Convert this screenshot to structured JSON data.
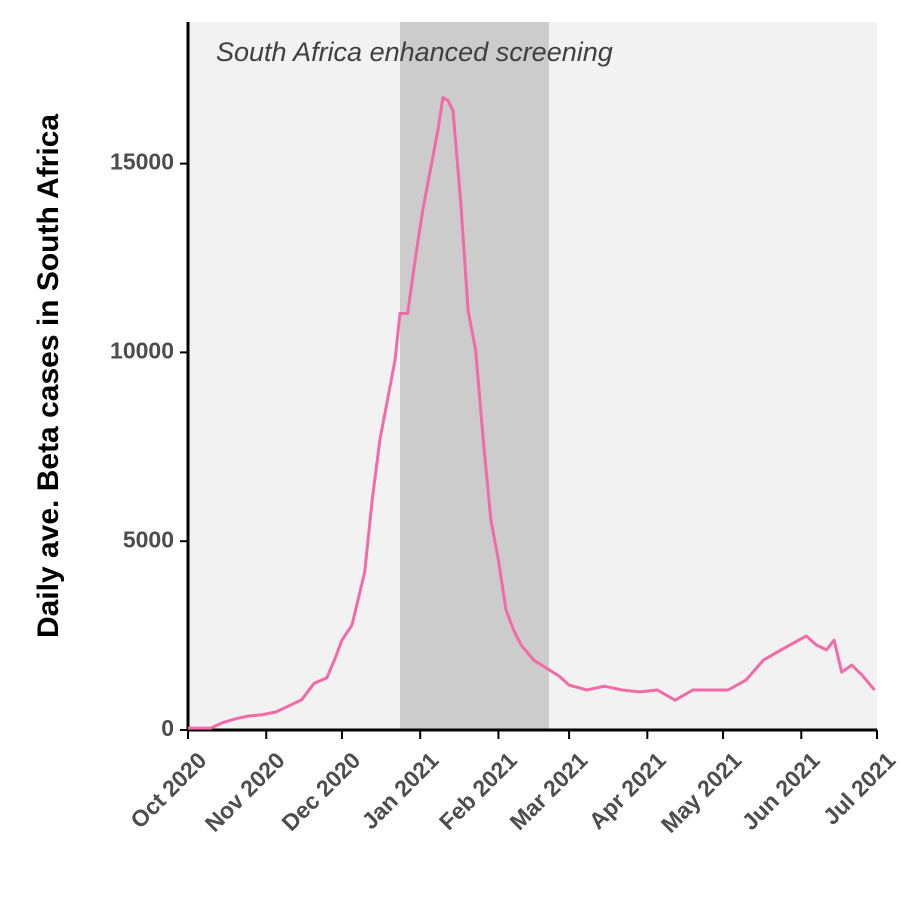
{
  "chart_data": {
    "type": "line",
    "y_label": "Daily ave. Beta cases in South Africa",
    "highlight": {
      "x": [
        "2020-12-24",
        "2021-02-21"
      ],
      "label": "South Africa enhanced screening",
      "color": "#cccccc"
    },
    "panel_color": "#f2f2f2",
    "x": [
      "2020-10-01",
      "2020-10-10",
      "2020-10-15",
      "2020-10-20",
      "2020-10-25",
      "2020-10-30",
      "2020-11-05",
      "2020-11-10",
      "2020-11-15",
      "2020-11-20",
      "2020-11-25",
      "2020-11-28",
      "2020-12-01",
      "2020-12-05",
      "2020-12-10",
      "2020-12-13",
      "2020-12-16",
      "2020-12-19",
      "2020-12-22",
      "2020-12-24",
      "2020-12-27",
      "2020-12-30",
      "2021-01-02",
      "2021-01-05",
      "2021-01-08",
      "2021-01-10",
      "2021-01-12",
      "2021-01-14",
      "2021-01-17",
      "2021-01-20",
      "2021-01-23",
      "2021-01-26",
      "2021-01-29",
      "2021-02-01",
      "2021-02-04",
      "2021-02-07",
      "2021-02-10",
      "2021-02-15",
      "2021-02-20",
      "2021-02-25",
      "2021-03-01",
      "2021-03-08",
      "2021-03-15",
      "2021-03-22",
      "2021-03-29",
      "2021-04-05",
      "2021-04-12",
      "2021-04-19",
      "2021-04-26",
      "2021-05-03",
      "2021-05-10",
      "2021-05-17",
      "2021-05-24",
      "2021-05-31",
      "2021-06-03",
      "2021-06-07",
      "2021-06-11",
      "2021-06-14",
      "2021-06-17",
      "2021-06-21",
      "2021-06-25",
      "2021-06-30"
    ],
    "series": [
      {
        "name": "Beta",
        "color": "#f46aa8",
        "values": [
          50,
          50,
          200,
          300,
          370,
          400,
          480,
          640,
          800,
          1240,
          1380,
          1850,
          2380,
          2780,
          4180,
          6090,
          7670,
          8730,
          9790,
          11030,
          11030,
          12440,
          13760,
          14820,
          15880,
          16750,
          16670,
          16400,
          14020,
          11110,
          10050,
          7670,
          5560,
          4500,
          3180,
          2650,
          2250,
          1850,
          1640,
          1430,
          1190,
          1060,
          1160,
          1060,
          1010,
          1060,
          790,
          1060,
          1060,
          1060,
          1320,
          1850,
          2120,
          2380,
          2490,
          2250,
          2120,
          2380,
          1530,
          1720,
          1460,
          1060
        ]
      }
    ],
    "xlim": [
      "2020-10-01",
      "2021-07-01"
    ],
    "xticks": [
      {
        "value": "2020-10-01",
        "label": "Oct 2020"
      },
      {
        "value": "2020-11-01",
        "label": "Nov 2020"
      },
      {
        "value": "2020-12-01",
        "label": "Dec 2020"
      },
      {
        "value": "2021-01-01",
        "label": "Jan 2021"
      },
      {
        "value": "2021-02-01",
        "label": "Feb 2021"
      },
      {
        "value": "2021-03-01",
        "label": "Mar 2021"
      },
      {
        "value": "2021-04-01",
        "label": "Apr 2021"
      },
      {
        "value": "2021-05-01",
        "label": "May 2021"
      },
      {
        "value": "2021-06-01",
        "label": "Jun 2021"
      },
      {
        "value": "2021-07-01",
        "label": "Jul 2021"
      }
    ],
    "ylim": [
      0,
      18750
    ],
    "yticks": [
      0,
      5000,
      10000,
      15000
    ]
  }
}
